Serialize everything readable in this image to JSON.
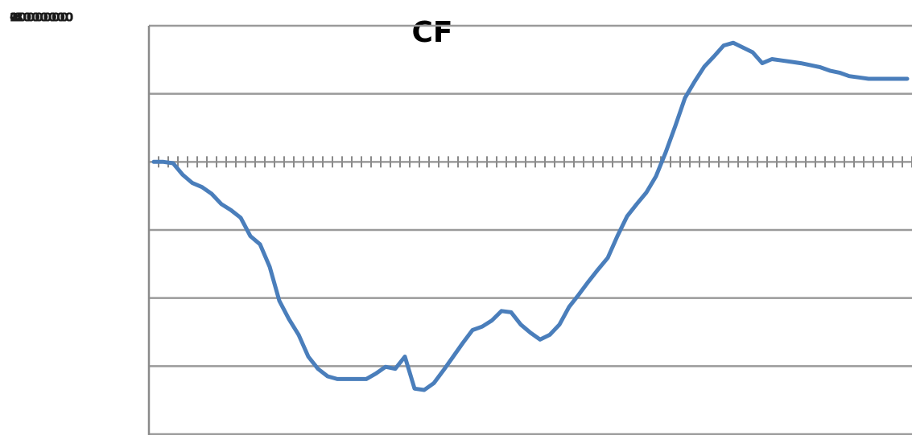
{
  "chart_data": {
    "type": "line",
    "title": "CF",
    "categories": [
      null,
      null,
      null,
      null,
      null,
      null,
      null,
      null,
      null,
      null,
      null,
      null,
      null,
      null,
      null,
      null,
      null,
      null,
      null,
      null,
      null,
      null,
      null,
      null,
      null,
      null,
      null,
      null,
      null,
      null,
      null,
      null,
      null,
      null,
      null,
      null,
      null,
      null,
      null,
      null,
      null,
      null,
      null,
      null,
      null,
      null,
      null,
      null,
      null,
      null,
      null,
      null,
      null,
      null,
      null,
      null,
      null,
      null,
      null,
      null,
      null,
      null,
      null,
      null,
      null,
      null,
      null,
      null,
      null,
      null,
      null,
      null,
      null,
      null,
      null,
      null,
      null,
      null,
      null
    ],
    "series": [
      {
        "color": "#4a7ebb",
        "values": [
          0,
          0,
          -20000,
          -190000,
          -310000,
          -370000,
          -470000,
          -620000,
          -710000,
          -820000,
          -1090000,
          -1210000,
          -1540000,
          -2040000,
          -2310000,
          -2540000,
          -2860000,
          -3040000,
          -3150000,
          -3190000,
          -3190000,
          -3190000,
          -3190000,
          -3110000,
          -3010000,
          -3040000,
          -2860000,
          -3330000,
          -3350000,
          -3250000,
          -3060000,
          -2860000,
          -2660000,
          -2470000,
          -2420000,
          -2330000,
          -2190000,
          -2210000,
          -2390000,
          -2510000,
          -2610000,
          -2540000,
          -2390000,
          -2130000,
          -1950000,
          -1760000,
          -1580000,
          -1410000,
          -1090000,
          -800000,
          -620000,
          -450000,
          -210000,
          140000,
          530000,
          940000,
          1180000,
          1400000,
          1550000,
          1710000,
          1750000,
          1680000,
          1610000,
          1450000,
          1510000,
          1490000,
          1470000,
          1450000,
          1420000,
          1390000,
          1340000,
          1310000,
          1260000,
          1240000,
          1220000,
          1220000,
          1220000,
          1220000,
          1220000
        ]
      }
    ],
    "ylim": [
      -4000000,
      2000000
    ],
    "yticks": [
      -4000000,
      -3000000,
      -2000000,
      -1000000,
      0,
      1000000,
      2000000
    ],
    "grid": true
  }
}
